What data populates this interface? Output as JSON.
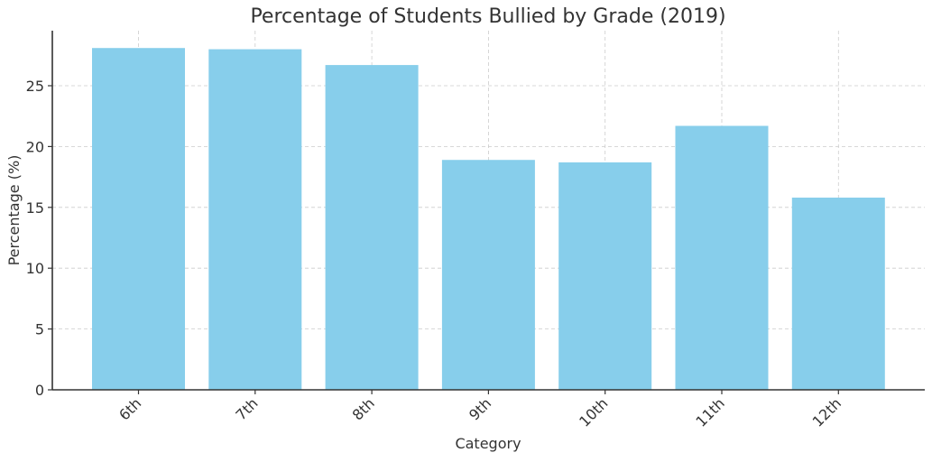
{
  "chart_data": {
    "type": "bar",
    "title": "Percentage of Students Bullied by Grade (2019)",
    "xlabel": "Category",
    "ylabel": "Percentage (%)",
    "categories": [
      "6th",
      "7th",
      "8th",
      "9th",
      "10th",
      "11th",
      "12th"
    ],
    "values": [
      28.1,
      28.0,
      26.7,
      18.9,
      18.7,
      21.7,
      15.8
    ],
    "yticks": [
      0,
      5,
      10,
      15,
      20,
      25
    ],
    "ylim": [
      0,
      29.5
    ],
    "grid": true,
    "legend": null,
    "bar_color": "#87CEEB"
  }
}
